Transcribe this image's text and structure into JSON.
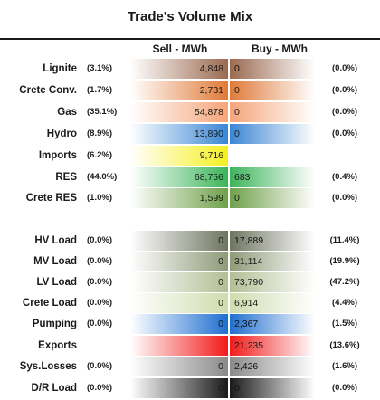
{
  "chart_data": {
    "type": "table",
    "title": "Trade's Volume Mix",
    "columns": [
      "Sell - MWh",
      "Buy - MWh"
    ],
    "rows": [
      {
        "label": "Lignite",
        "sell_pct": "(3.1%)",
        "sell": "4,848",
        "buy": "0",
        "buy_pct": "(0.0%)",
        "sell_color": "#9b6a50",
        "buy_color": "#9b6a50"
      },
      {
        "label": "Crete Conv.",
        "sell_pct": "(1.7%)",
        "sell": "2,731",
        "buy": "0",
        "buy_pct": "(0.0%)",
        "sell_color": "#e07a38",
        "buy_color": "#e07a38"
      },
      {
        "label": "Gas",
        "sell_pct": "(35.1%)",
        "sell": "54,878",
        "buy": "0",
        "buy_pct": "(0.0%)",
        "sell_color": "#f4a57a",
        "buy_color": "#f4a57a"
      },
      {
        "label": "Hydro",
        "sell_pct": "(8.9%)",
        "sell": "13,890",
        "buy": "0",
        "buy_pct": "(0.0%)",
        "sell_color": "#3a86d4",
        "buy_color": "#3a86d4"
      },
      {
        "label": "Imports",
        "sell_pct": "(6.2%)",
        "sell": "9,716",
        "buy": "",
        "buy_pct": "",
        "sell_color": "#f5f020",
        "buy_color": ""
      },
      {
        "label": "RES",
        "sell_pct": "(44.0%)",
        "sell": "68,756",
        "buy": "683",
        "buy_pct": "(0.4%)",
        "sell_color": "#3cb55a",
        "buy_color": "#3cb55a"
      },
      {
        "label": "Crete RES",
        "sell_pct": "(1.0%)",
        "sell": "1,599",
        "buy": "0",
        "buy_pct": "(0.0%)",
        "sell_color": "#6fa04a",
        "buy_color": "#6fa04a"
      },
      {
        "label": "HV Load",
        "sell_pct": "(0.0%)",
        "sell": "0",
        "buy": "17,889",
        "buy_pct": "(11.4%)",
        "sell_color": "#6f7560",
        "buy_color": "#6f7560"
      },
      {
        "label": "MV Load",
        "sell_pct": "(0.0%)",
        "sell": "0",
        "buy": "31,114",
        "buy_pct": "(19.9%)",
        "sell_color": "#8e9a78",
        "buy_color": "#8e9a78"
      },
      {
        "label": "LV Load",
        "sell_pct": "(0.0%)",
        "sell": "0",
        "buy": "73,790",
        "buy_pct": "(47.2%)",
        "sell_color": "#b2be94",
        "buy_color": "#b2be94"
      },
      {
        "label": "Crete Load",
        "sell_pct": "(0.0%)",
        "sell": "0",
        "buy": "6,914",
        "buy_pct": "(4.4%)",
        "sell_color": "#cfdcae",
        "buy_color": "#cfdcae"
      },
      {
        "label": "Pumping",
        "sell_pct": "(0.0%)",
        "sell": "0",
        "buy": "2,367",
        "buy_pct": "(1.5%)",
        "sell_color": "#1f6fd0",
        "buy_color": "#1f6fd0"
      },
      {
        "label": "Exports",
        "sell_pct": "",
        "sell": "",
        "buy": "21,235",
        "buy_pct": "(13.6%)",
        "sell_color": "#f21a1a",
        "buy_color": "#f21a1a"
      },
      {
        "label": "Sys.Losses",
        "sell_pct": "(0.0%)",
        "sell": "0",
        "buy": "2,426",
        "buy_pct": "(1.6%)",
        "sell_color": "#8a8a8a",
        "buy_color": "#8a8a8a"
      },
      {
        "label": "D/R Load",
        "sell_pct": "(0.0%)",
        "sell": "0",
        "buy": "0",
        "buy_pct": "(0.0%)",
        "sell_color": "#1a1a1a",
        "buy_color": "#1a1a1a"
      }
    ]
  }
}
